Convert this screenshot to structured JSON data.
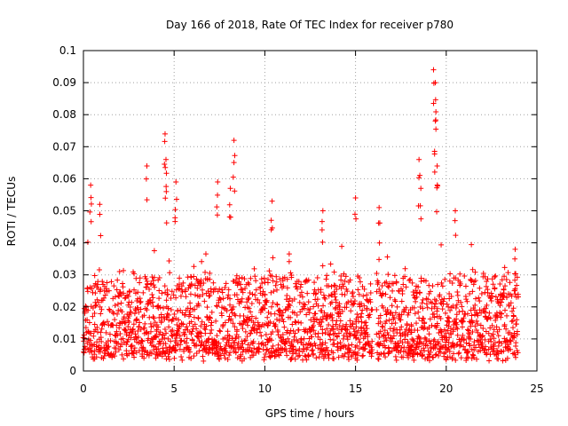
{
  "chart_data": {
    "type": "scatter",
    "title": "Day 166 of 2018, Rate Of TEC Index for receiver p780",
    "xlabel": "GPS time / hours",
    "ylabel": "ROTI / TECUs",
    "xlim": [
      0,
      25
    ],
    "ylim": [
      0,
      0.1
    ],
    "xticks": [
      "0",
      "5",
      "10",
      "15",
      "20",
      "25"
    ],
    "yticks": [
      "0",
      "0.01",
      "0.02",
      "0.03",
      "0.04",
      "0.05",
      "0.06",
      "0.07",
      "0.08",
      "0.09",
      "0.1"
    ],
    "grid": true,
    "marker": "+",
    "color": "#ff0000",
    "data_gap_hours": [
      15.95,
      16.15
    ],
    "baseline_band": [
      0.005,
      0.03
    ],
    "peaks": [
      {
        "x": 0.4,
        "y": 0.058
      },
      {
        "x": 0.9,
        "y": 0.052
      },
      {
        "x": 3.5,
        "y": 0.064
      },
      {
        "x": 4.5,
        "y": 0.074
      },
      {
        "x": 4.55,
        "y": 0.066
      },
      {
        "x": 5.1,
        "y": 0.059
      },
      {
        "x": 7.4,
        "y": 0.059
      },
      {
        "x": 8.3,
        "y": 0.072
      },
      {
        "x": 8.1,
        "y": 0.057
      },
      {
        "x": 10.4,
        "y": 0.053
      },
      {
        "x": 13.2,
        "y": 0.05
      },
      {
        "x": 15.0,
        "y": 0.054
      },
      {
        "x": 16.3,
        "y": 0.051
      },
      {
        "x": 18.5,
        "y": 0.066
      },
      {
        "x": 19.3,
        "y": 0.094
      },
      {
        "x": 19.4,
        "y": 0.09
      },
      {
        "x": 19.4,
        "y": 0.078
      },
      {
        "x": 19.5,
        "y": 0.064
      },
      {
        "x": 18.6,
        "y": 0.057
      },
      {
        "x": 20.5,
        "y": 0.05
      },
      {
        "x": 23.8,
        "y": 0.038
      }
    ]
  }
}
